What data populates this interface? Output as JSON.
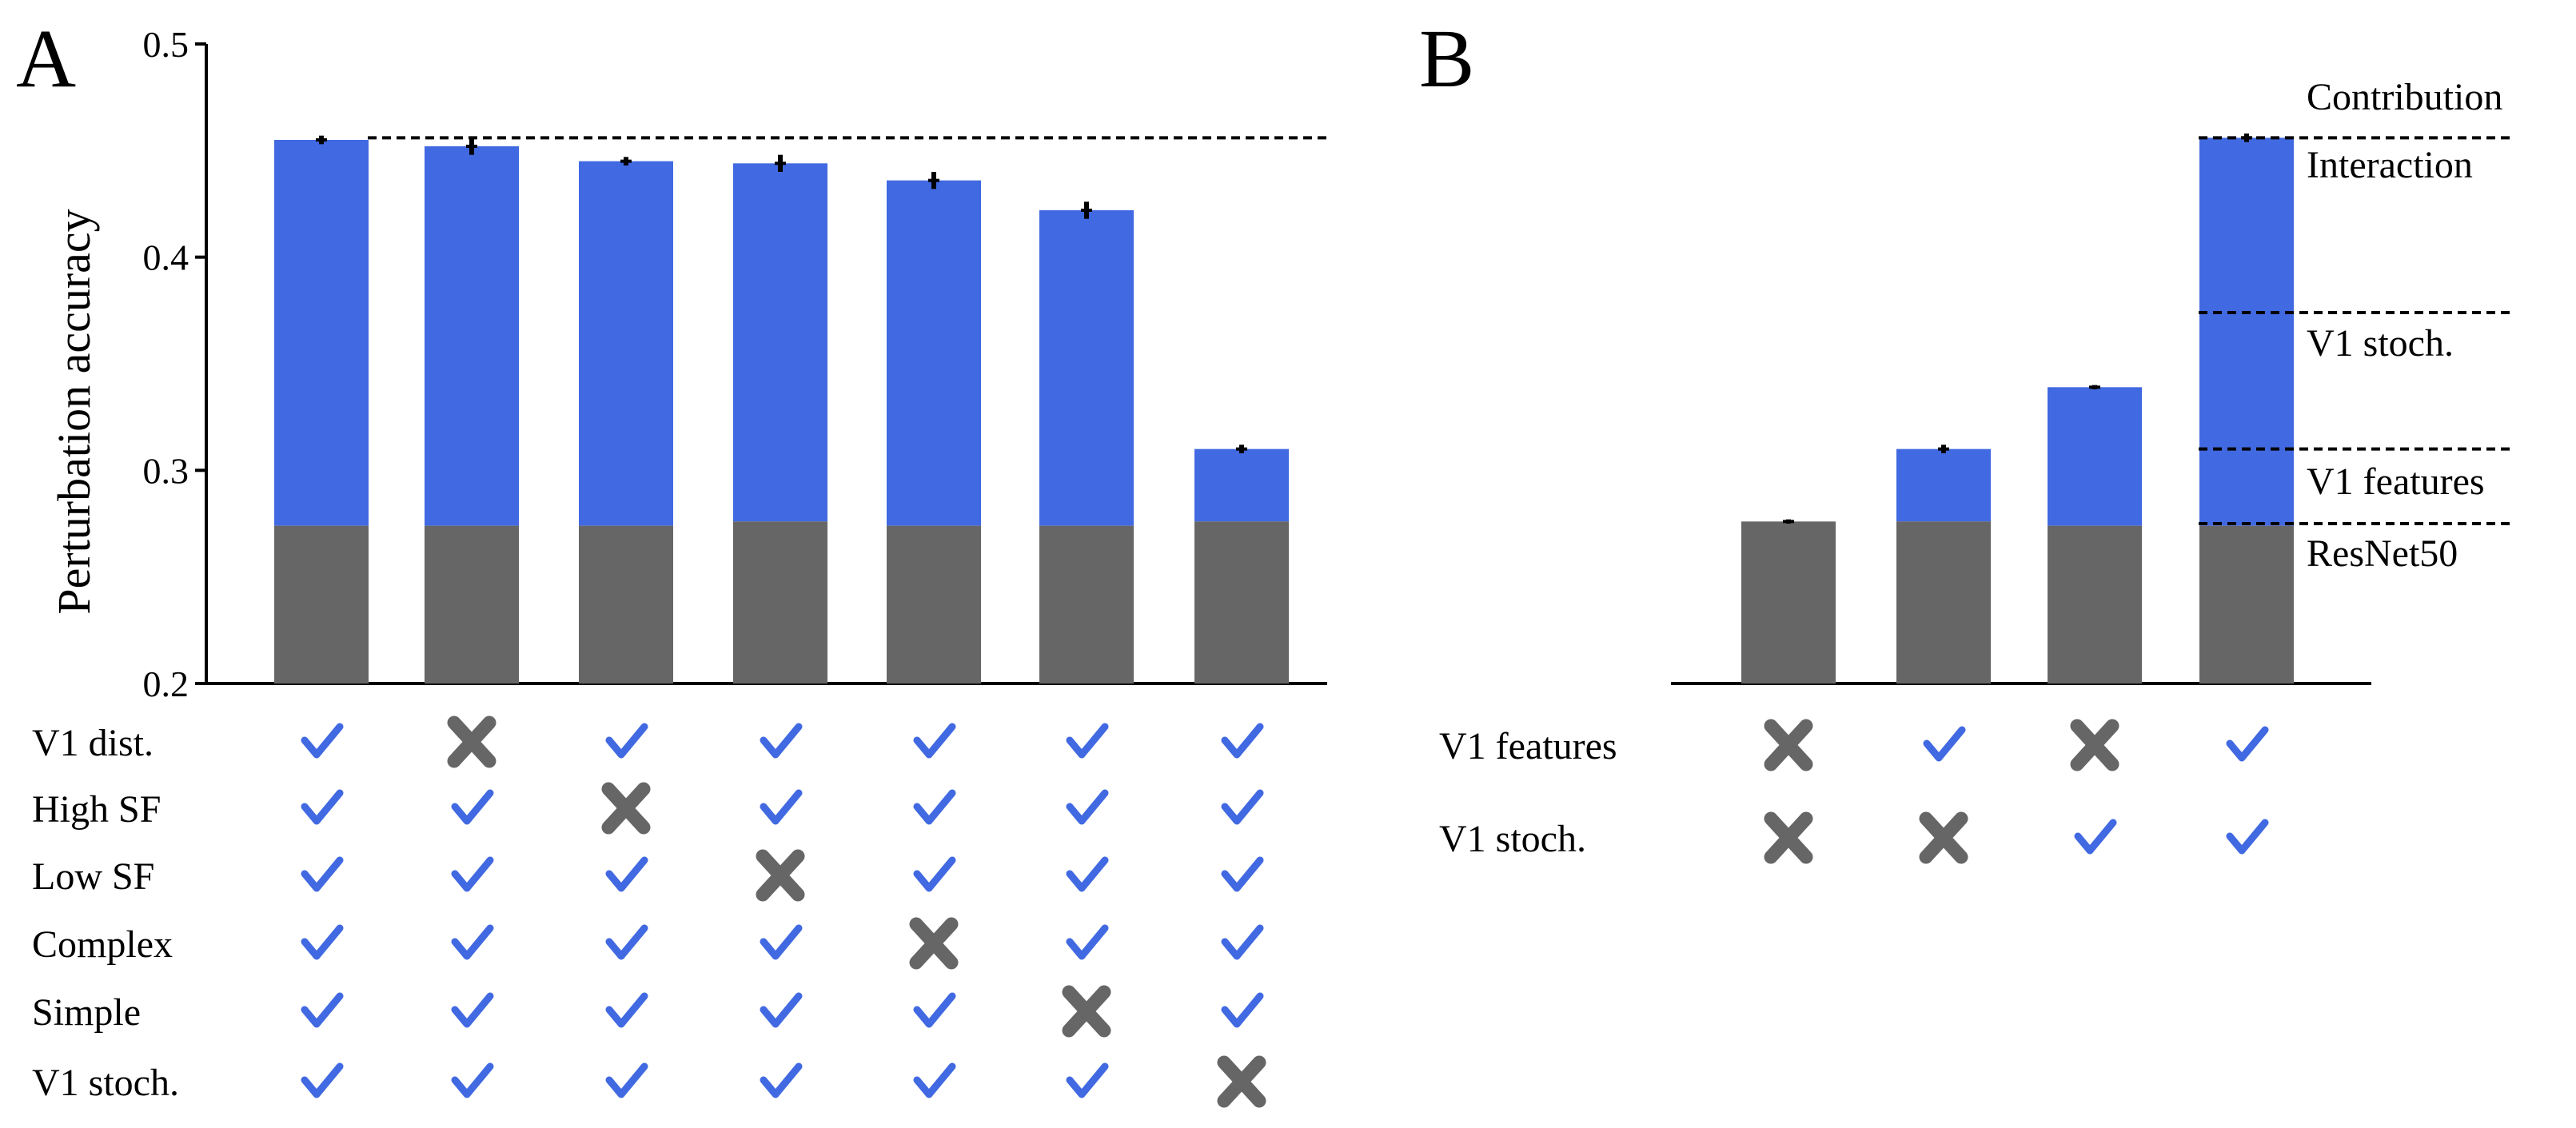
{
  "colors": {
    "blue": "#4169e1",
    "gray": "#666666",
    "cross": "#666666",
    "check": "#4169e1"
  },
  "panels": {
    "a": {
      "letter": "A"
    },
    "b": {
      "letter": "B"
    }
  },
  "chart_data": [
    {
      "panel": "A",
      "type": "bar",
      "stacked": true,
      "ylabel": "Perturbation accuracy",
      "xlabel": "",
      "ylim": [
        0.2,
        0.5
      ],
      "yticks": [
        "0.2",
        "0.3",
        "0.4",
        "0.5"
      ],
      "baseline_series": {
        "values": [
          0.274,
          0.274,
          0.274,
          0.276,
          0.274,
          0.274,
          0.276
        ]
      },
      "total_values": [
        0.455,
        0.452,
        0.445,
        0.444,
        0.436,
        0.422,
        0.31
      ],
      "error": [
        0.002,
        0.004,
        0.002,
        0.004,
        0.004,
        0.004,
        0.002
      ],
      "reference_line": 0.456,
      "rows": [
        {
          "label": "V1 dist.",
          "marks": [
            1,
            0,
            1,
            1,
            1,
            1,
            1
          ]
        },
        {
          "label": "High SF",
          "marks": [
            1,
            1,
            0,
            1,
            1,
            1,
            1
          ]
        },
        {
          "label": "Low SF",
          "marks": [
            1,
            1,
            1,
            0,
            1,
            1,
            1
          ]
        },
        {
          "label": "Complex",
          "marks": [
            1,
            1,
            1,
            1,
            0,
            1,
            1
          ]
        },
        {
          "label": "Simple",
          "marks": [
            1,
            1,
            1,
            1,
            1,
            0,
            1
          ]
        },
        {
          "label": "V1 stoch.",
          "marks": [
            1,
            1,
            1,
            1,
            1,
            1,
            0
          ]
        }
      ]
    },
    {
      "panel": "B",
      "type": "bar",
      "stacked": true,
      "ylim": [
        0.2,
        0.5
      ],
      "baseline_series": {
        "values": [
          0.276,
          0.276,
          0.274,
          0.274
        ]
      },
      "total_values": [
        0.276,
        0.31,
        0.339,
        0.456
      ],
      "error": [
        0.001,
        0.002,
        0.001,
        0.002
      ],
      "reference_lines": [
        0.456,
        0.374,
        0.31,
        0.275
      ],
      "contribution_header": "Contribution",
      "contribution_labels": [
        "Interaction",
        "V1 stoch.",
        "V1 features",
        "ResNet50"
      ],
      "rows": [
        {
          "label": "V1 features",
          "marks": [
            0,
            1,
            0,
            1
          ]
        },
        {
          "label": "V1 stoch.",
          "marks": [
            0,
            0,
            1,
            1
          ]
        }
      ]
    }
  ]
}
